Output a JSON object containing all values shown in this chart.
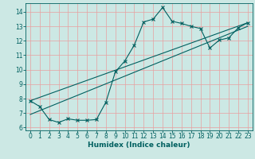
{
  "xlabel": "Humidex (Indice chaleur)",
  "ylabel": "",
  "background_color": "#cce8e4",
  "grid_color": "#e8a0a0",
  "line_color": "#006060",
  "xlim": [
    -0.5,
    23.5
  ],
  "ylim": [
    5.8,
    14.6
  ],
  "xticks": [
    0,
    1,
    2,
    3,
    4,
    5,
    6,
    7,
    8,
    9,
    10,
    11,
    12,
    13,
    14,
    15,
    16,
    17,
    18,
    19,
    20,
    21,
    22,
    23
  ],
  "yticks": [
    6,
    7,
    8,
    9,
    10,
    11,
    12,
    13,
    14
  ],
  "line1_x": [
    0,
    1,
    2,
    3,
    4,
    5,
    6,
    7,
    8,
    9,
    10,
    11,
    12,
    13,
    14,
    15,
    16,
    17,
    18,
    19,
    20,
    21,
    22,
    23
  ],
  "line1_y": [
    7.85,
    7.45,
    6.55,
    6.35,
    6.6,
    6.5,
    6.5,
    6.55,
    7.75,
    9.85,
    10.6,
    11.7,
    13.3,
    13.5,
    14.3,
    13.35,
    13.2,
    13.0,
    12.85,
    11.5,
    12.05,
    12.2,
    12.9,
    13.25
  ],
  "line2_x": [
    0,
    23
  ],
  "line2_y": [
    7.85,
    13.25
  ],
  "line3_x": [
    0,
    23
  ],
  "line3_y": [
    6.9,
    13.0
  ],
  "tick_fontsize": 5.5,
  "xlabel_fontsize": 6.5,
  "marker_size": 2.5,
  "linewidth": 0.8
}
